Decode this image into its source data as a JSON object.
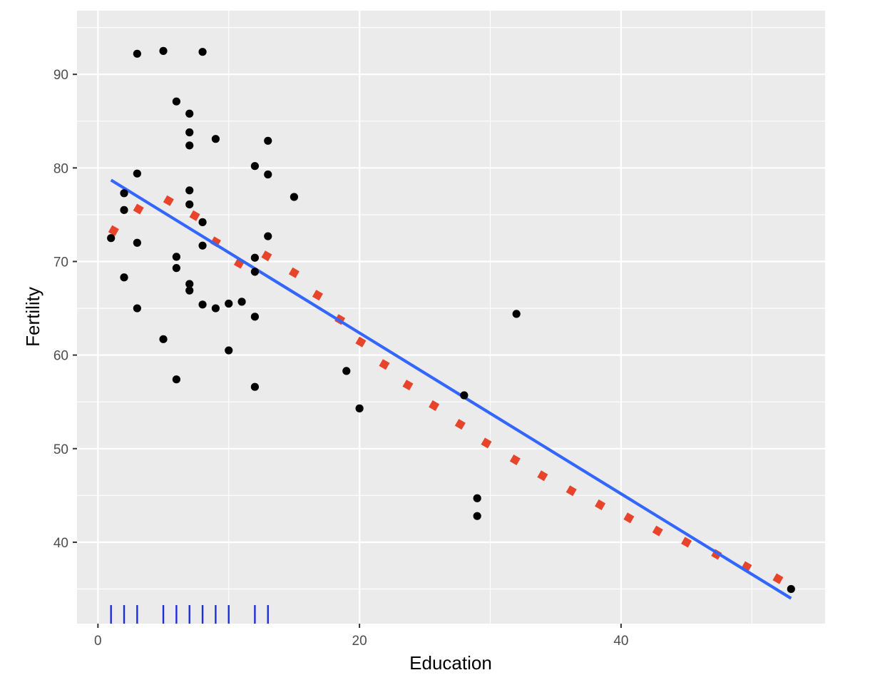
{
  "chart_data": {
    "type": "scatter",
    "xlabel": "Education",
    "ylabel": "Fertility",
    "xlim": [
      -1.6,
      55.6
    ],
    "ylim": [
      31.3,
      96.8
    ],
    "x_ticks": [
      0,
      20,
      40
    ],
    "y_ticks": [
      40,
      50,
      60,
      70,
      80,
      90
    ],
    "grid": true,
    "legend": "none",
    "series": [
      {
        "type": "scatter",
        "color": "#000000",
        "points": [
          [
            1,
            72.5
          ],
          [
            2,
            77.3
          ],
          [
            2,
            75.5
          ],
          [
            2,
            68.3
          ],
          [
            3,
            92.2
          ],
          [
            3,
            79.4
          ],
          [
            3,
            72.0
          ],
          [
            3,
            65.0
          ],
          [
            5,
            92.5
          ],
          [
            5,
            61.7
          ],
          [
            6,
            87.1
          ],
          [
            6,
            70.5
          ],
          [
            6,
            69.3
          ],
          [
            6,
            57.4
          ],
          [
            7,
            85.8
          ],
          [
            7,
            83.8
          ],
          [
            7,
            82.4
          ],
          [
            7,
            77.6
          ],
          [
            7,
            76.1
          ],
          [
            7,
            67.6
          ],
          [
            7,
            66.9
          ],
          [
            8,
            92.4
          ],
          [
            8,
            74.2
          ],
          [
            8,
            71.7
          ],
          [
            8,
            65.4
          ],
          [
            9,
            83.1
          ],
          [
            9,
            65.0
          ],
          [
            10,
            65.5
          ],
          [
            10,
            60.5
          ],
          [
            11,
            65.7
          ],
          [
            12,
            80.2
          ],
          [
            12,
            70.4
          ],
          [
            12,
            68.9
          ],
          [
            12,
            64.1
          ],
          [
            12,
            56.6
          ],
          [
            13,
            82.9
          ],
          [
            13,
            79.3
          ],
          [
            13,
            72.7
          ],
          [
            15,
            76.9
          ],
          [
            19,
            58.3
          ],
          [
            20,
            54.3
          ],
          [
            28,
            55.7
          ],
          [
            29,
            44.7
          ],
          [
            29,
            42.8
          ],
          [
            32,
            64.4
          ],
          [
            53,
            35.0
          ]
        ]
      },
      {
        "type": "line",
        "style": "solid",
        "color": "#3366ff",
        "x": [
          1,
          53
        ],
        "y": [
          78.7,
          34.0
        ]
      },
      {
        "type": "line",
        "style": "dotted",
        "color": "#e8432b",
        "x": [
          1.2,
          3.1,
          5.4,
          7.4,
          9.0,
          10.8,
          12.9,
          15.0,
          16.8,
          18.5,
          20.1,
          21.9,
          23.7,
          25.7,
          27.7,
          29.7,
          31.9,
          34.0,
          36.2,
          38.4,
          40.6,
          42.8,
          45.0,
          47.3,
          49.6,
          52.0
        ],
        "y": [
          73.3,
          75.6,
          76.5,
          74.9,
          72.1,
          69.8,
          70.6,
          68.8,
          66.4,
          63.8,
          61.4,
          59.0,
          56.8,
          54.6,
          52.6,
          50.6,
          48.8,
          47.1,
          45.5,
          44.0,
          42.6,
          41.2,
          40.0,
          38.7,
          37.4,
          36.1
        ]
      },
      {
        "type": "rug",
        "color": "#1c2fd6",
        "x": [
          1,
          2,
          3,
          5,
          6,
          7,
          8,
          9,
          10,
          12,
          13
        ]
      }
    ]
  }
}
